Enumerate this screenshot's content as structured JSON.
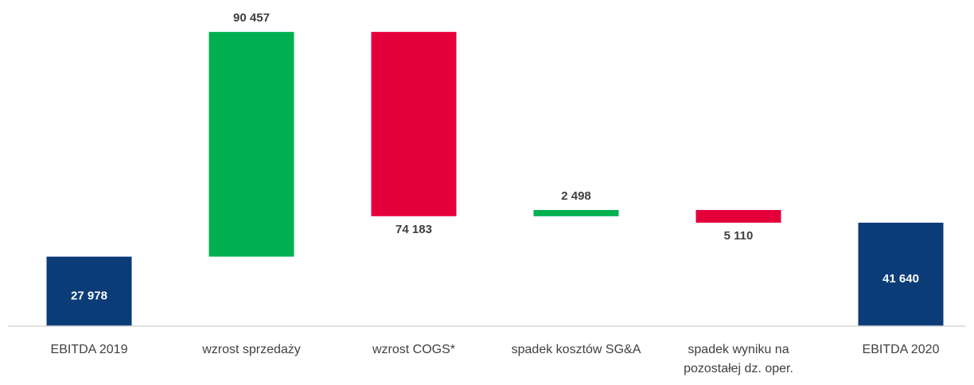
{
  "chart_data": {
    "type": "waterfall",
    "categories": [
      "EBITDA 2019",
      "wzrost sprzedaży",
      "wzrost COGS*",
      "spadek kosztów SG&A",
      "spadek wyniku na pozostałej dz. oper.",
      "EBITDA 2020"
    ],
    "values": [
      27978,
      90457,
      -74183,
      2498,
      -5110,
      41640
    ],
    "value_labels": [
      "27 978",
      "90 457",
      "74 183",
      "2 498",
      "5 110",
      "41 640"
    ],
    "measure": [
      "absolute",
      "relative",
      "relative",
      "relative",
      "relative",
      "absolute"
    ],
    "colors": {
      "total": "#0b3c78",
      "increase": "#00b050",
      "decrease": "#e4003b"
    },
    "ylim": [
      0,
      130000
    ]
  }
}
